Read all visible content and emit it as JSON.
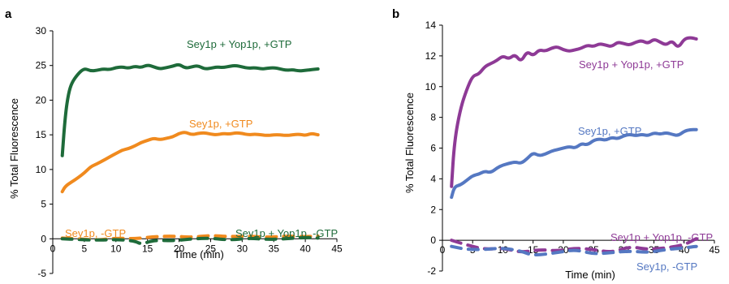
{
  "chart_data": [
    {
      "panel_label": "a",
      "type": "line",
      "title": "",
      "xlabel": "Time (min)",
      "ylabel": "% Total Fluorescence",
      "xlim": [
        0,
        45
      ],
      "ylim": [
        -5,
        30
      ],
      "x_ticks": [
        0,
        5,
        10,
        15,
        20,
        25,
        30,
        35,
        40,
        45
      ],
      "y_ticks": [
        -5,
        0,
        5,
        10,
        15,
        20,
        25,
        30
      ],
      "series": [
        {
          "name": "Sey1p + Yop1p, +GTP",
          "color": "#1e6b3a",
          "style": "solid",
          "x": [
            1.5,
            2,
            2.5,
            3,
            4,
            5,
            6,
            7,
            8,
            9,
            10,
            11,
            12,
            13,
            14,
            15,
            16,
            17,
            18,
            19,
            20,
            21,
            22,
            23,
            24,
            25,
            26,
            27,
            28,
            29,
            30,
            31,
            32,
            33,
            34,
            35,
            36,
            37,
            38,
            39,
            40,
            41,
            42
          ],
          "y": [
            12,
            18,
            21,
            22.5,
            23.8,
            24.6,
            24.2,
            24.3,
            24.5,
            24.4,
            24.7,
            24.8,
            24.6,
            24.9,
            24.7,
            25.1,
            24.8,
            24.5,
            24.7,
            24.9,
            25.2,
            24.6,
            24.8,
            25.0,
            24.5,
            24.6,
            24.8,
            24.7,
            24.9,
            25.0,
            24.8,
            24.6,
            24.7,
            24.5,
            24.6,
            24.7,
            24.5,
            24.3,
            24.4,
            24.2,
            24.3,
            24.4,
            24.5
          ]
        },
        {
          "name": "Sey1p, +GTP",
          "color": "#f08a1e",
          "style": "solid",
          "x": [
            1.5,
            2,
            3,
            4,
            5,
            6,
            7,
            8,
            9,
            10,
            11,
            12,
            13,
            14,
            15,
            16,
            17,
            18,
            19,
            20,
            21,
            22,
            23,
            24,
            25,
            26,
            27,
            28,
            29,
            30,
            31,
            32,
            33,
            34,
            35,
            36,
            37,
            38,
            39,
            40,
            41,
            42
          ],
          "y": [
            6.8,
            7.6,
            8.2,
            8.8,
            9.5,
            10.4,
            10.8,
            11.3,
            11.8,
            12.3,
            12.8,
            13.0,
            13.4,
            13.9,
            14.2,
            14.5,
            14.3,
            14.5,
            14.7,
            15.2,
            15.4,
            15.0,
            15.2,
            15.3,
            15.1,
            15.0,
            15.2,
            15.1,
            15.3,
            15.2,
            15.0,
            15.1,
            15.0,
            14.9,
            15.0,
            15.0,
            14.9,
            15.0,
            15.1,
            14.9,
            15.2,
            15.0
          ]
        },
        {
          "name": "Sey1p, -GTP",
          "color": "#f08a1e",
          "style": "dashed",
          "x": [
            1.5,
            4,
            7,
            10,
            13,
            16,
            19,
            22,
            25,
            28,
            31,
            34,
            37,
            40,
            42
          ],
          "y": [
            0.1,
            0.0,
            -0.2,
            0.1,
            0.0,
            0.3,
            0.4,
            0.2,
            0.5,
            0.3,
            0.4,
            0.2,
            0.4,
            0.3,
            0.4
          ]
        },
        {
          "name": "Sey1p + Yop1p, -GTP",
          "color": "#1e6b3a",
          "style": "dashed",
          "x": [
            1.5,
            4,
            7,
            10,
            13,
            14,
            16,
            19,
            22,
            25,
            28,
            31,
            34,
            37,
            40,
            42
          ],
          "y": [
            0.0,
            -0.1,
            -0.2,
            -0.1,
            -0.3,
            -0.8,
            -0.2,
            -0.3,
            0.0,
            0.1,
            -0.2,
            0.1,
            -0.1,
            0.0,
            0.2,
            0.1
          ]
        }
      ]
    },
    {
      "panel_label": "b",
      "type": "line",
      "title": "",
      "xlabel": "Time (min)",
      "ylabel": "% Total Fluorescence",
      "xlim": [
        0,
        45
      ],
      "ylim": [
        -2,
        14
      ],
      "x_ticks": [
        0,
        5,
        10,
        15,
        20,
        25,
        30,
        35,
        40,
        45
      ],
      "y_ticks": [
        -2,
        0,
        2,
        4,
        6,
        8,
        10,
        12,
        14
      ],
      "series": [
        {
          "name": "Sey1p + Yop1p, +GTP",
          "color": "#8e3a96",
          "style": "solid",
          "x": [
            1.5,
            2,
            3,
            4,
            5,
            6,
            7,
            8,
            9,
            10,
            11,
            12,
            13,
            14,
            15,
            16,
            17,
            18,
            19,
            20,
            21,
            22,
            23,
            24,
            25,
            26,
            27,
            28,
            29,
            30,
            31,
            32,
            33,
            34,
            35,
            36,
            37,
            38,
            39,
            40,
            41,
            42
          ],
          "y": [
            3.5,
            6.5,
            8.6,
            9.8,
            10.7,
            10.8,
            11.3,
            11.5,
            11.7,
            12.0,
            11.8,
            12.1,
            11.6,
            12.3,
            12.0,
            12.4,
            12.3,
            12.5,
            12.6,
            12.4,
            12.3,
            12.4,
            12.5,
            12.7,
            12.6,
            12.8,
            12.7,
            12.6,
            12.9,
            12.8,
            12.7,
            12.9,
            13.0,
            12.8,
            13.1,
            12.9,
            12.7,
            13.0,
            12.5,
            13.1,
            13.2,
            13.1
          ]
        },
        {
          "name": "Sey1p, +GTP",
          "color": "#5578c2",
          "style": "solid",
          "x": [
            1.5,
            2,
            3,
            4,
            5,
            6,
            7,
            8,
            9,
            10,
            11,
            12,
            13,
            14,
            15,
            16,
            17,
            18,
            19,
            20,
            21,
            22,
            23,
            24,
            25,
            26,
            27,
            28,
            29,
            30,
            31,
            32,
            33,
            34,
            35,
            36,
            37,
            38,
            39,
            40,
            41,
            42
          ],
          "y": [
            2.8,
            3.5,
            3.6,
            3.9,
            4.2,
            4.3,
            4.5,
            4.4,
            4.7,
            4.9,
            5.0,
            5.1,
            5.0,
            5.3,
            5.7,
            5.5,
            5.6,
            5.8,
            5.9,
            6.0,
            6.1,
            6.0,
            6.3,
            6.2,
            6.5,
            6.6,
            6.5,
            6.7,
            6.6,
            6.8,
            6.9,
            6.8,
            6.9,
            6.8,
            7.0,
            6.9,
            7.0,
            6.9,
            6.8,
            7.1,
            7.2,
            7.2
          ]
        },
        {
          "name": "Sey1p + Yop1p, -GTP",
          "color": "#8e3a96",
          "style": "dashed",
          "x": [
            1.5,
            4,
            7,
            10,
            13,
            16,
            19,
            22,
            25,
            28,
            31,
            34,
            37,
            40,
            42
          ],
          "y": [
            0.0,
            -0.3,
            -0.6,
            -0.5,
            -0.8,
            -0.6,
            -0.7,
            -0.5,
            -0.6,
            -0.8,
            -0.4,
            -0.6,
            -0.5,
            -0.3,
            0.1
          ]
        },
        {
          "name": "Sey1p, -GTP",
          "color": "#5578c2",
          "style": "dashed",
          "x": [
            1.5,
            4,
            7,
            10,
            13,
            15,
            19,
            22,
            25,
            28,
            31,
            34,
            37,
            40,
            42
          ],
          "y": [
            -0.4,
            -0.6,
            -0.6,
            -0.5,
            -0.7,
            -1.0,
            -0.8,
            -0.6,
            -0.9,
            -0.8,
            -0.7,
            -0.8,
            -0.6,
            -0.5,
            -0.4
          ]
        }
      ]
    }
  ]
}
